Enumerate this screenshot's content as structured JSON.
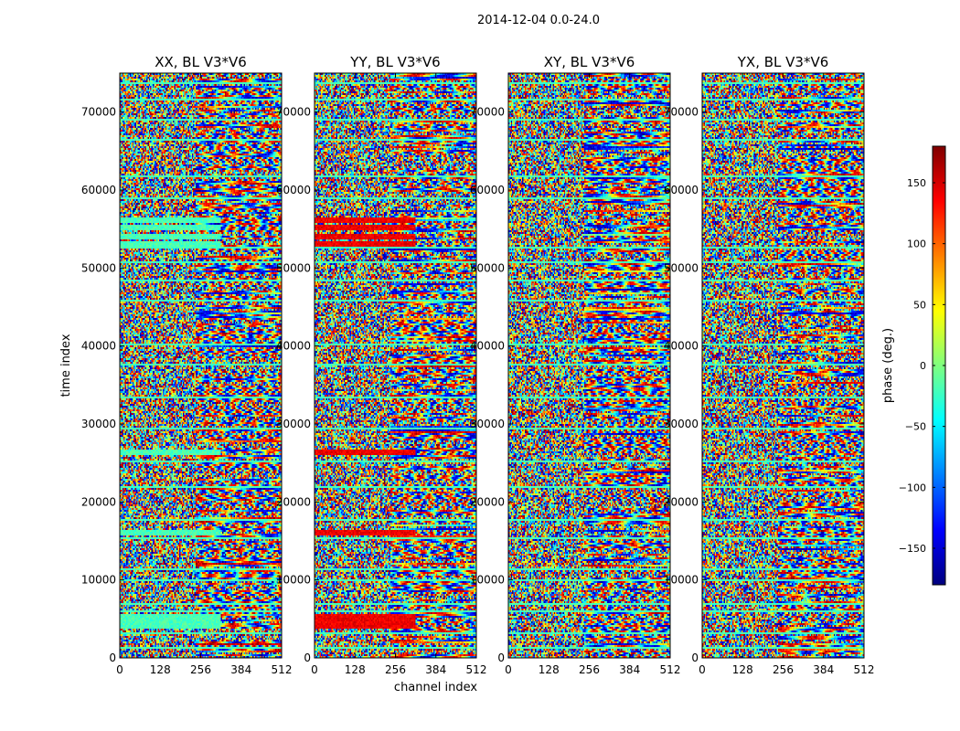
{
  "suptitle": "2014-12-04 0.0-24.0",
  "chart_data": [
    {
      "type": "heatmap",
      "title": "XX, BL V3*V6",
      "xlabel": "",
      "ylabel": "time index",
      "x_ticks": [
        "0",
        "128",
        "256",
        "384",
        "512"
      ],
      "y_ticks": [
        "0",
        "10000",
        "20000",
        "30000",
        "40000",
        "50000",
        "60000",
        "70000"
      ],
      "xlim": [
        0,
        512
      ],
      "ylim": [
        0,
        75000
      ],
      "seed": 11,
      "flagged_rows_time": [
        4000,
        4600,
        5200,
        16000,
        26300,
        53000,
        54000,
        55000,
        56000
      ],
      "flag_extent_channel": [
        0,
        320
      ],
      "flag_phase_deg": -20
    },
    {
      "type": "heatmap",
      "title": "YY, BL V3*V6",
      "xlabel": "channel index",
      "ylabel": "",
      "x_ticks": [
        "0",
        "128",
        "256",
        "384",
        "512"
      ],
      "y_ticks": [
        "0",
        "10000",
        "20000",
        "30000",
        "40000",
        "50000",
        "60000",
        "70000"
      ],
      "xlim": [
        0,
        512
      ],
      "ylim": [
        0,
        75000
      ],
      "seed": 23,
      "flagged_rows_time": [
        4000,
        4600,
        5200,
        16000,
        26300,
        53000,
        54000,
        55000,
        56000
      ],
      "flag_extent_channel": [
        0,
        320
      ],
      "flag_phase_deg": 140
    },
    {
      "type": "heatmap",
      "title": "XY, BL V3*V6",
      "xlabel": "",
      "ylabel": "",
      "x_ticks": [
        "0",
        "128",
        "256",
        "384",
        "512"
      ],
      "y_ticks": [
        "0",
        "10000",
        "20000",
        "30000",
        "40000",
        "50000",
        "60000",
        "70000"
      ],
      "xlim": [
        0,
        512
      ],
      "ylim": [
        0,
        75000
      ],
      "seed": 37,
      "flagged_rows_time": [],
      "flag_extent_channel": [
        0,
        320
      ],
      "flag_phase_deg": 0
    },
    {
      "type": "heatmap",
      "title": "YX, BL V3*V6",
      "xlabel": "",
      "ylabel": "",
      "x_ticks": [
        "0",
        "128",
        "256",
        "384",
        "512"
      ],
      "y_ticks": [
        "0",
        "10000",
        "20000",
        "30000",
        "40000",
        "50000",
        "60000",
        "70000"
      ],
      "xlim": [
        0,
        512
      ],
      "ylim": [
        0,
        75000
      ],
      "seed": 53,
      "flagged_rows_time": [],
      "flag_extent_channel": [
        0,
        320
      ],
      "flag_phase_deg": 0
    }
  ],
  "colorbar": {
    "label": "phase (deg.)",
    "range": [
      -180,
      180
    ],
    "ticks": [
      "150",
      "100",
      "50",
      "0",
      "−50",
      "−100",
      "−150"
    ],
    "tick_values": [
      150,
      100,
      50,
      0,
      -50,
      -100,
      -150
    ],
    "colormap": "jet"
  },
  "band_rows_time": [
    1200,
    3100,
    5800,
    6900,
    9800,
    11200,
    15300,
    17600,
    21900,
    25100,
    29400,
    33200,
    37500,
    40100,
    45800,
    48200,
    50600,
    52400,
    58900,
    61700,
    66400,
    68900,
    71500,
    73700
  ],
  "band_phase_deg": -20,
  "fringe_channel_start": 240
}
